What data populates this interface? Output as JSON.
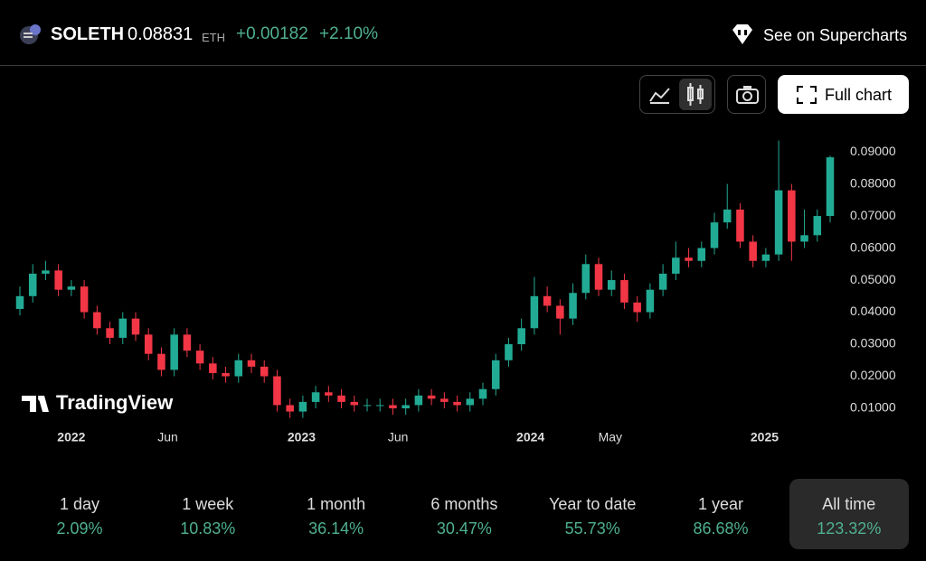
{
  "header": {
    "symbol": "SOLETH",
    "price": "0.08831",
    "currency": "ETH",
    "change": "+0.00182",
    "change_percent": "+2.10%",
    "link": "See on Supercharts"
  },
  "toolbar": {
    "full_chart": "Full chart"
  },
  "chart_data": {
    "type": "candlestick",
    "watermark": "TradingView",
    "up_color": "#22ab94",
    "down_color": "#f23645",
    "open": [
      0.041,
      0.045,
      0.052,
      0.053,
      0.047,
      0.048,
      0.04,
      0.035,
      0.032,
      0.038,
      0.033,
      0.027,
      0.022,
      0.033,
      0.028,
      0.024,
      0.021,
      0.02,
      0.025,
      0.023,
      0.02,
      0.011,
      0.009,
      0.012,
      0.015,
      0.014,
      0.012,
      0.011,
      0.011,
      0.011,
      0.01,
      0.011,
      0.014,
      0.013,
      0.012,
      0.011,
      0.013,
      0.016,
      0.025,
      0.03,
      0.035,
      0.045,
      0.042,
      0.038,
      0.046,
      0.055,
      0.047,
      0.05,
      0.043,
      0.04,
      0.047,
      0.052,
      0.057,
      0.056,
      0.06,
      0.068,
      0.072,
      0.062,
      0.056,
      0.058,
      0.078,
      0.062,
      0.064,
      0.07
    ],
    "high": [
      0.048,
      0.055,
      0.056,
      0.055,
      0.05,
      0.05,
      0.042,
      0.037,
      0.04,
      0.04,
      0.035,
      0.029,
      0.035,
      0.035,
      0.03,
      0.026,
      0.023,
      0.027,
      0.027,
      0.025,
      0.022,
      0.013,
      0.014,
      0.017,
      0.017,
      0.016,
      0.014,
      0.013,
      0.013,
      0.013,
      0.013,
      0.016,
      0.016,
      0.015,
      0.014,
      0.015,
      0.018,
      0.027,
      0.032,
      0.038,
      0.051,
      0.048,
      0.044,
      0.049,
      0.058,
      0.057,
      0.053,
      0.052,
      0.045,
      0.049,
      0.055,
      0.062,
      0.06,
      0.062,
      0.071,
      0.08,
      0.074,
      0.064,
      0.06,
      0.0935,
      0.08,
      0.072,
      0.072,
      0.0888
    ],
    "low": [
      0.039,
      0.043,
      0.05,
      0.045,
      0.045,
      0.038,
      0.033,
      0.03,
      0.03,
      0.031,
      0.025,
      0.02,
      0.02,
      0.026,
      0.022,
      0.019,
      0.018,
      0.018,
      0.021,
      0.018,
      0.009,
      0.007,
      0.007,
      0.01,
      0.012,
      0.01,
      0.009,
      0.009,
      0.009,
      0.008,
      0.008,
      0.009,
      0.011,
      0.01,
      0.009,
      0.009,
      0.011,
      0.014,
      0.023,
      0.028,
      0.033,
      0.04,
      0.033,
      0.036,
      0.044,
      0.045,
      0.045,
      0.041,
      0.037,
      0.038,
      0.045,
      0.05,
      0.054,
      0.054,
      0.058,
      0.066,
      0.06,
      0.054,
      0.054,
      0.056,
      0.056,
      0.06,
      0.062,
      0.068
    ],
    "close": [
      0.045,
      0.052,
      0.053,
      0.047,
      0.048,
      0.04,
      0.035,
      0.032,
      0.038,
      0.033,
      0.027,
      0.022,
      0.033,
      0.028,
      0.024,
      0.021,
      0.02,
      0.025,
      0.023,
      0.02,
      0.011,
      0.009,
      0.012,
      0.015,
      0.014,
      0.012,
      0.011,
      0.011,
      0.011,
      0.01,
      0.011,
      0.014,
      0.013,
      0.012,
      0.011,
      0.013,
      0.016,
      0.025,
      0.03,
      0.035,
      0.045,
      0.042,
      0.038,
      0.046,
      0.055,
      0.047,
      0.05,
      0.043,
      0.04,
      0.047,
      0.052,
      0.057,
      0.056,
      0.06,
      0.068,
      0.072,
      0.062,
      0.056,
      0.058,
      0.078,
      0.062,
      0.064,
      0.07,
      0.0883
    ],
    "xlim": [
      0,
      63
    ],
    "xticks": [
      {
        "value": 4,
        "label": "2022"
      },
      {
        "value": 11.5,
        "label": "Jun"
      },
      {
        "value": 21.9,
        "label": "2023"
      },
      {
        "value": 29.4,
        "label": "Jun"
      },
      {
        "value": 39.7,
        "label": "2024"
      },
      {
        "value": 45.9,
        "label": "May"
      },
      {
        "value": 57.9,
        "label": "2025"
      }
    ],
    "ylim": [
      0.00634,
      0.0951
    ],
    "yticks": [
      {
        "value": 0.01,
        "label": "0.01000"
      },
      {
        "value": 0.02,
        "label": "0.02000"
      },
      {
        "value": 0.03,
        "label": "0.03000"
      },
      {
        "value": 0.04,
        "label": "0.04000"
      },
      {
        "value": 0.05,
        "label": "0.05000"
      },
      {
        "value": 0.06,
        "label": "0.06000"
      },
      {
        "value": 0.07,
        "label": "0.07000"
      },
      {
        "value": 0.08,
        "label": "0.08000"
      },
      {
        "value": 0.09,
        "label": "0.09000"
      }
    ]
  },
  "periods": {
    "selected": 6,
    "items": [
      {
        "label": "1 day",
        "value": "2.09%"
      },
      {
        "label": "1 week",
        "value": "10.83%"
      },
      {
        "label": "1 month",
        "value": "36.14%"
      },
      {
        "label": "6 months",
        "value": "30.47%"
      },
      {
        "label": "Year to date",
        "value": "55.73%"
      },
      {
        "label": "1 year",
        "value": "86.68%"
      },
      {
        "label": "All time",
        "value": "123.32%"
      }
    ]
  }
}
